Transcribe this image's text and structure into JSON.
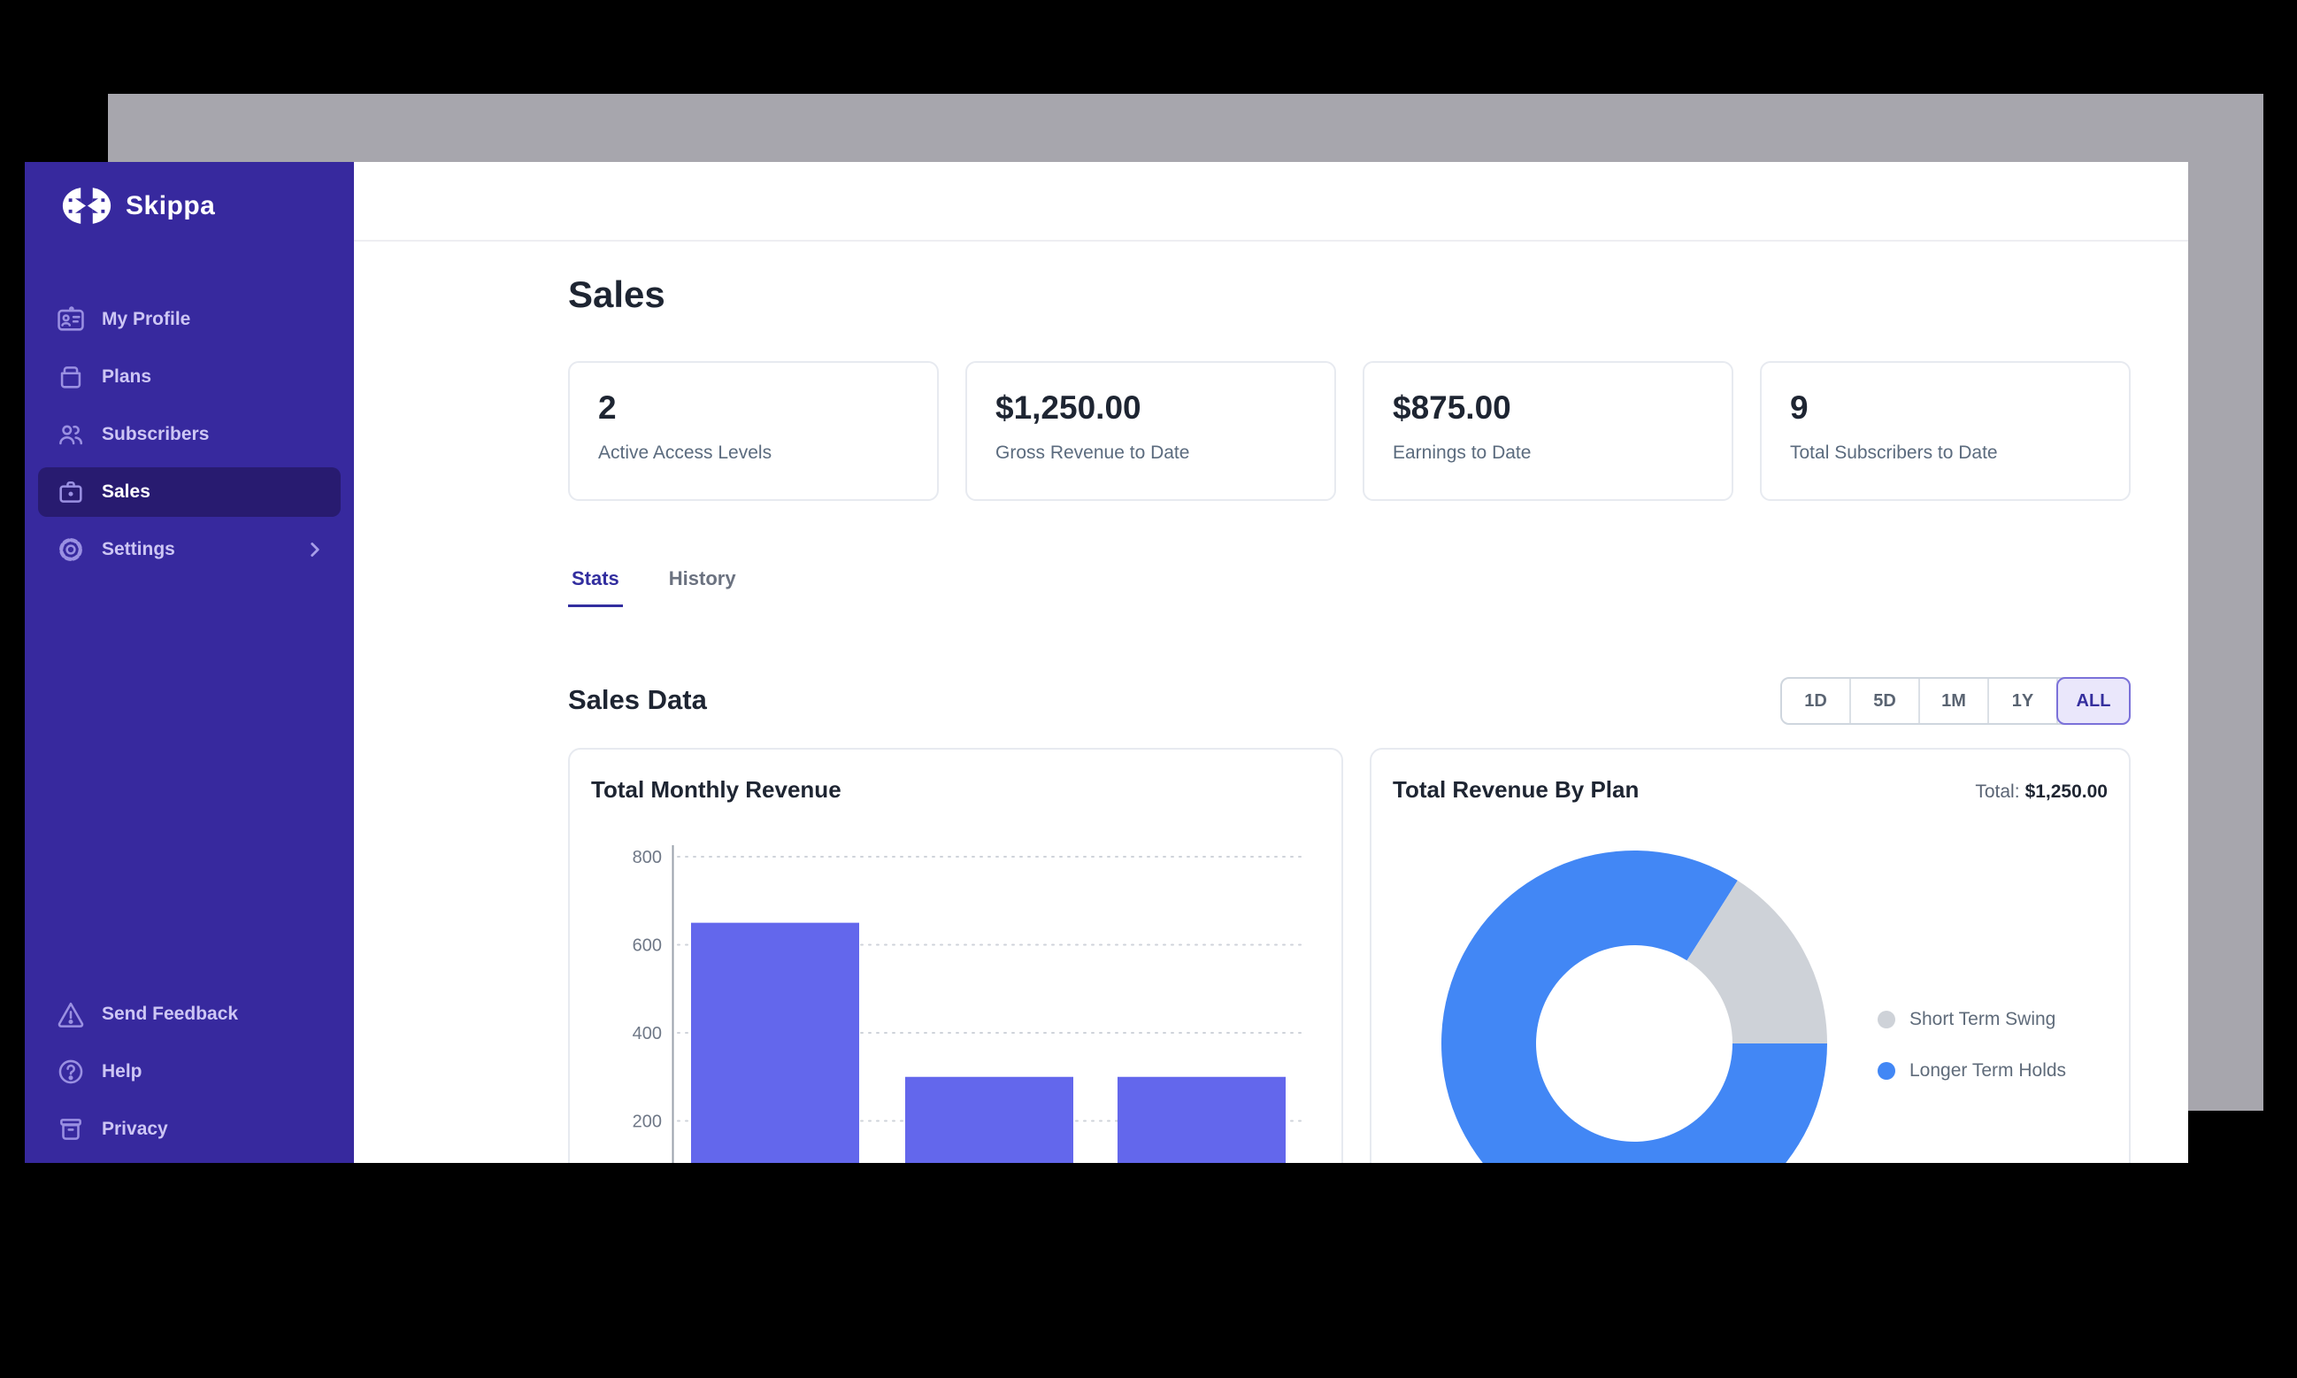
{
  "app": {
    "name": "Skippa"
  },
  "colors": {
    "sidebar": "#37299e",
    "sidebar_active": "#281b70",
    "accent_indigo": "#322e9f",
    "bar_purple": "#6367ec",
    "donut_blue": "#4287f5",
    "donut_gray": "#ced2d8",
    "backdrop_gray": "#a7a6ad"
  },
  "sidebar": {
    "logo_text": "Skippa",
    "items": [
      {
        "label": "My Profile",
        "icon": "id-card-icon",
        "active": false
      },
      {
        "label": "Plans",
        "icon": "box-icon",
        "active": false
      },
      {
        "label": "Subscribers",
        "icon": "users-icon",
        "active": false
      },
      {
        "label": "Sales",
        "icon": "briefcase-icon",
        "active": true
      },
      {
        "label": "Settings",
        "icon": "gear-icon",
        "active": false,
        "has_chevron": true
      }
    ],
    "footer_items": [
      {
        "label": "Send Feedback",
        "icon": "warning-triangle-icon"
      },
      {
        "label": "Help",
        "icon": "question-circle-icon"
      },
      {
        "label": "Privacy",
        "icon": "archive-box-icon"
      }
    ]
  },
  "page": {
    "title": "Sales"
  },
  "stat_cards": [
    {
      "value": "2",
      "label": "Active Access Levels"
    },
    {
      "value": "$1,250.00",
      "label": "Gross Revenue to Date"
    },
    {
      "value": "$875.00",
      "label": "Earnings to Date"
    },
    {
      "value": "9",
      "label": "Total Subscribers to Date"
    }
  ],
  "tabs": {
    "active": "Stats",
    "items": [
      {
        "label": "Stats"
      },
      {
        "label": "History"
      }
    ]
  },
  "section": {
    "title": "Sales Data"
  },
  "range": {
    "active": "ALL",
    "options": [
      "1D",
      "5D",
      "1M",
      "1Y",
      "ALL"
    ]
  },
  "chart_data": [
    {
      "type": "bar",
      "title": "Total Monthly Revenue",
      "values": [
        650,
        300,
        300
      ],
      "ylim": [
        0,
        800
      ],
      "yticks": [
        800,
        600,
        400,
        200
      ],
      "grid": "dotted-horizontal",
      "bar_color": "#6367ec",
      "x_labels_visible": false
    },
    {
      "type": "donut",
      "title": "Total Revenue By Plan",
      "total_label": "Total:",
      "total_value": "$1,250.00",
      "legend_position": "right",
      "series": [
        {
          "name": "Short Term Swing",
          "value": 200,
          "color": "#ced2d8"
        },
        {
          "name": "Longer Term Holds",
          "value": 1050,
          "color": "#4287f5"
        }
      ]
    }
  ]
}
